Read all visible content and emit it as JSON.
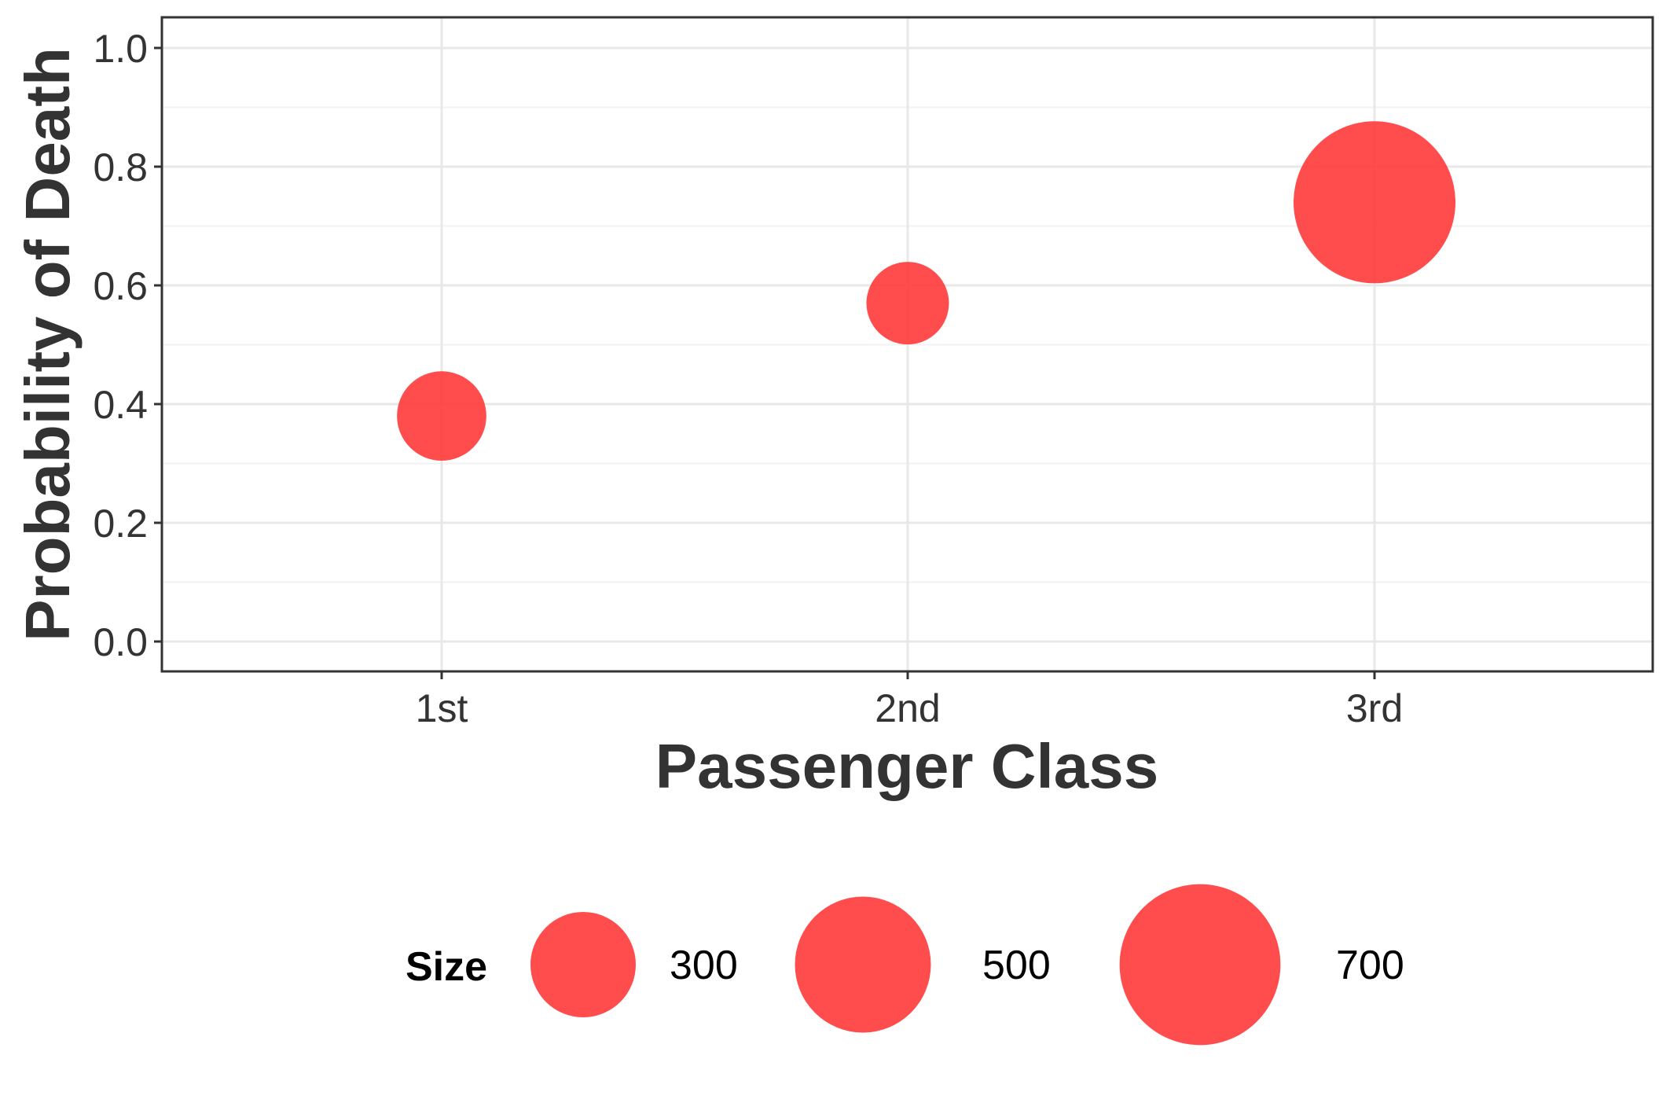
{
  "chart_data": {
    "type": "scatter",
    "xlabel": "Passenger Class",
    "ylabel": "Probability of Death",
    "categories": [
      "1st",
      "2nd",
      "3rd"
    ],
    "series": [
      {
        "points": [
          {
            "x": "1st",
            "y": 0.38,
            "size": 216
          },
          {
            "x": "2nd",
            "y": 0.57,
            "size": 184
          },
          {
            "x": "3rd",
            "y": 0.74,
            "size": 709
          }
        ]
      }
    ],
    "ylim": [
      0,
      1.0
    ],
    "yticks": [
      0.0,
      0.2,
      0.4,
      0.6,
      0.8,
      1.0
    ],
    "ytick_labels": [
      "0.0",
      "0.2",
      "0.4",
      "0.6",
      "0.8",
      "1.0"
    ],
    "grid": true,
    "point_color": "#ff3333",
    "legend": {
      "title": "Size",
      "position": "bottom",
      "entries": [
        {
          "value": 300,
          "label": "300"
        },
        {
          "value": 500,
          "label": "500"
        },
        {
          "value": 700,
          "label": "700"
        }
      ]
    }
  }
}
